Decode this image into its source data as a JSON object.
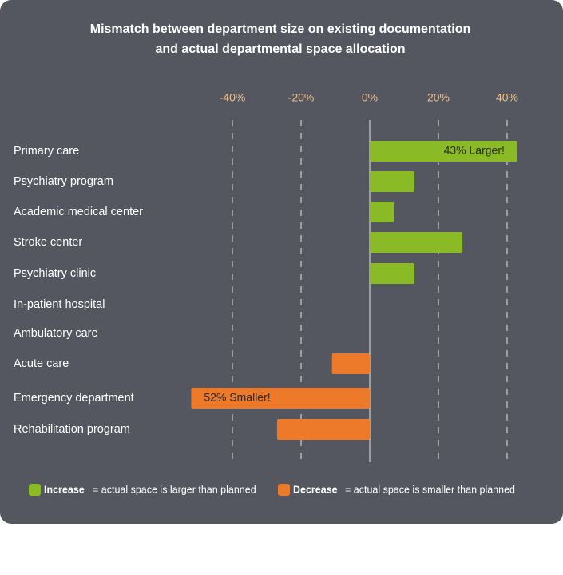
{
  "chart_data": {
    "type": "bar",
    "title": [
      "Mismatch between department size on existing documentation",
      "and actual departmental space allocation"
    ],
    "categories": [
      "Primary care",
      "Psychiatry program",
      "Academic medical center",
      "Stroke center",
      "Psychiatry clinic",
      "In-patient hospital",
      "Ambulatory care",
      "Acute care",
      "Emergency department",
      "Rehabilitation program"
    ],
    "values": [
      43,
      13,
      7,
      27,
      13,
      0,
      0,
      -11,
      -52,
      -27
    ],
    "value_labels": [
      "43% Larger!",
      null,
      null,
      null,
      null,
      null,
      null,
      null,
      "52% Smaller!",
      null
    ],
    "xlim": [
      -55,
      45
    ],
    "xticks": [
      {
        "value": -40,
        "label": "-40%"
      },
      {
        "value": -20,
        "label": "-20%"
      },
      {
        "value": 0,
        "label": "0%"
      },
      {
        "value": 20,
        "label": "20%"
      },
      {
        "value": 40,
        "label": "40%"
      }
    ],
    "grid": true,
    "legend": [
      {
        "name": "Increase",
        "description": "= actual space is larger than planned",
        "color": "#8aba25"
      },
      {
        "name": "Decrease",
        "description": "= actual space is smaller than planned",
        "color": "#ec7a2a"
      }
    ]
  }
}
